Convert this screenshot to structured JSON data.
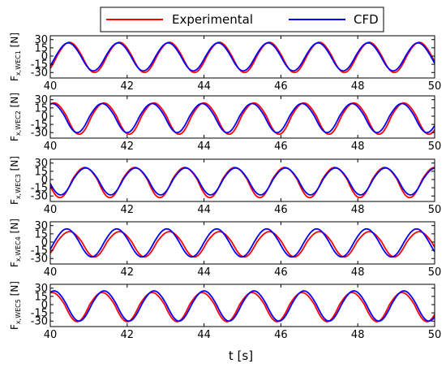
{
  "chart_data": {
    "type": "line",
    "xlabel": "t [s]",
    "xlim": [
      40,
      50
    ],
    "xticks": [
      "40",
      "42",
      "44",
      "46",
      "48",
      "50"
    ],
    "legend": {
      "placement": "top-center",
      "entries": [
        {
          "name": "Experimental",
          "color": "#ff0000"
        },
        {
          "name": "CFD",
          "color": "#0000ff"
        }
      ]
    },
    "panels": [
      {
        "ylabel_main": "F",
        "ylabel_sub": "x,WEC1",
        "ylabel_unit": "[N]",
        "ylim": [
          -40,
          37
        ],
        "yticks": [
          "30",
          "15",
          "0",
          "-15",
          "-30"
        ],
        "period_s": 1.3,
        "series": [
          {
            "name": "Experimental",
            "color": "#ff0000",
            "amp_pos": 25,
            "amp_neg": 30,
            "first_peak_t": 40.5
          },
          {
            "name": "CFD",
            "color": "#0000ff",
            "amp_pos": 24,
            "amp_neg": 27,
            "first_peak_t": 40.47
          }
        ]
      },
      {
        "ylabel_main": "F",
        "ylabel_sub": "x,WEC2",
        "ylabel_unit": "[N]",
        "ylim": [
          -40,
          37
        ],
        "yticks": [
          "30",
          "15",
          "0",
          "-15",
          "-30"
        ],
        "period_s": 1.3,
        "series": [
          {
            "name": "Experimental",
            "color": "#ff0000",
            "amp_pos": 24,
            "amp_neg": 33,
            "first_peak_t": 40.1
          },
          {
            "name": "CFD",
            "color": "#0000ff",
            "amp_pos": 23,
            "amp_neg": 30,
            "first_peak_t": 40.05
          }
        ]
      },
      {
        "ylabel_main": "F",
        "ylabel_sub": "x,WEC3",
        "ylabel_unit": "[N]",
        "ylim": [
          -40,
          37
        ],
        "yticks": [
          "30",
          "15",
          "0",
          "-15",
          "-30"
        ],
        "period_s": 1.3,
        "series": [
          {
            "name": "Experimental",
            "color": "#ff0000",
            "amp_pos": 22,
            "amp_neg": 33,
            "first_peak_t": 40.9
          },
          {
            "name": "CFD",
            "color": "#0000ff",
            "amp_pos": 21,
            "amp_neg": 28,
            "first_peak_t": 40.92
          }
        ]
      },
      {
        "ylabel_main": "F",
        "ylabel_sub": "x,WEC4",
        "ylabel_unit": "[N]",
        "ylim": [
          -40,
          37
        ],
        "yticks": [
          "30",
          "15",
          "0",
          "-15",
          "-30"
        ],
        "period_s": 1.3,
        "series": [
          {
            "name": "Experimental",
            "color": "#ff0000",
            "amp_pos": 19,
            "amp_neg": 27,
            "first_peak_t": 40.5
          },
          {
            "name": "CFD",
            "color": "#0000ff",
            "amp_pos": 24,
            "amp_neg": 27,
            "first_peak_t": 40.43
          }
        ]
      },
      {
        "ylabel_main": "F",
        "ylabel_sub": "x,WEC5",
        "ylabel_unit": "[N]",
        "ylim": [
          -40,
          37
        ],
        "yticks": [
          "30",
          "15",
          "0",
          "-15",
          "-30"
        ],
        "period_s": 1.3,
        "series": [
          {
            "name": "Experimental",
            "color": "#ff0000",
            "amp_pos": 22,
            "amp_neg": 31,
            "first_peak_t": 40.05
          },
          {
            "name": "CFD",
            "color": "#0000ff",
            "amp_pos": 25,
            "amp_neg": 30,
            "first_peak_t": 40.1
          }
        ]
      }
    ]
  }
}
